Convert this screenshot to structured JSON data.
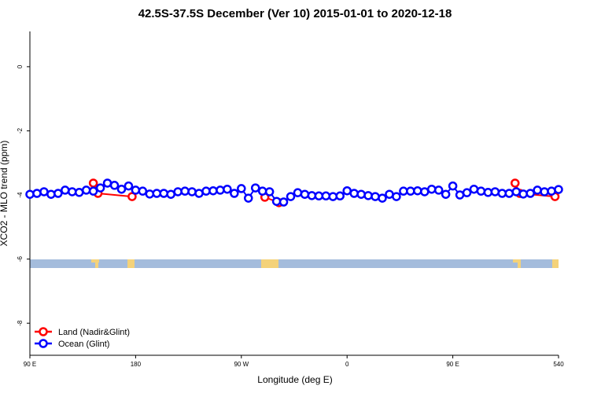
{
  "chart_data": {
    "type": "line",
    "title": "42.5S-37.5S December (Ver 10)   2015-01-01 to 2020-12-18",
    "x_label": "Longitude (deg E)",
    "y_label": "XCO2 - MLO trend (ppm)",
    "xlim": [
      90,
      540
    ],
    "ylim": [
      -9,
      1.1
    ],
    "xticks": [
      {
        "value": 90,
        "label": "90 E"
      },
      180,
      {
        "value": 270,
        "label": "90 W"
      },
      {
        "value": 360,
        "label": "0"
      },
      {
        "value": 450,
        "label": "90 E"
      },
      540
    ],
    "yticks": [
      0,
      -2,
      -4,
      -6,
      -8
    ],
    "legend": "bottom-left",
    "series": [
      {
        "name": "Land (Nadir&Glint)",
        "color": "#ff0000",
        "x": [
          144,
          148,
          177,
          230,
          290,
          302,
          400,
          503,
          507,
          537
        ],
        "values": [
          -3.63,
          -3.95,
          -4.05,
          null,
          -4.07,
          -4.24,
          null,
          -3.63,
          -3.95,
          -4.05
        ]
      },
      {
        "name": "Ocean (Glint)",
        "color": "#0000ff",
        "x": [
          90,
          96,
          102,
          108,
          114,
          120,
          126,
          132,
          138,
          144,
          150,
          156,
          162,
          168,
          174,
          180,
          186,
          192,
          198,
          204,
          210,
          216,
          222,
          228,
          234,
          240,
          246,
          252,
          258,
          264,
          270,
          276,
          282,
          288,
          294,
          300,
          306,
          312,
          318,
          324,
          330,
          336,
          342,
          348,
          354,
          360,
          366,
          372,
          378,
          384,
          390,
          396,
          402,
          408,
          414,
          420,
          426,
          432,
          438,
          444,
          450,
          456,
          462,
          468,
          474,
          480,
          486,
          492,
          498,
          504,
          510,
          516,
          522,
          528,
          534,
          540
        ],
        "values": [
          -3.98,
          -3.95,
          -3.9,
          -3.98,
          -3.95,
          -3.85,
          -3.9,
          -3.92,
          -3.85,
          -3.88,
          -3.78,
          -3.63,
          -3.7,
          -3.82,
          -3.72,
          -3.85,
          -3.88,
          -3.97,
          -3.95,
          -3.95,
          -3.98,
          -3.9,
          -3.88,
          -3.9,
          -3.95,
          -3.88,
          -3.87,
          -3.85,
          -3.82,
          -3.95,
          -3.8,
          -4.1,
          -3.78,
          -3.88,
          -3.9,
          -4.2,
          -4.22,
          -4.05,
          -3.93,
          -3.98,
          -4.02,
          -4.03,
          -4.03,
          -4.05,
          -4.03,
          -3.87,
          -3.95,
          -3.98,
          -4.02,
          -4.05,
          -4.1,
          -3.98,
          -4.05,
          -3.88,
          -3.88,
          -3.87,
          -3.9,
          -3.82,
          -3.85,
          -3.98,
          -3.72,
          -4.0,
          -3.93,
          -3.82,
          -3.88,
          -3.92,
          -3.9,
          -3.95,
          -3.95,
          -3.9,
          -3.97,
          -3.95,
          -3.85,
          -3.9,
          -3.88,
          -3.83
        ]
      }
    ]
  }
}
